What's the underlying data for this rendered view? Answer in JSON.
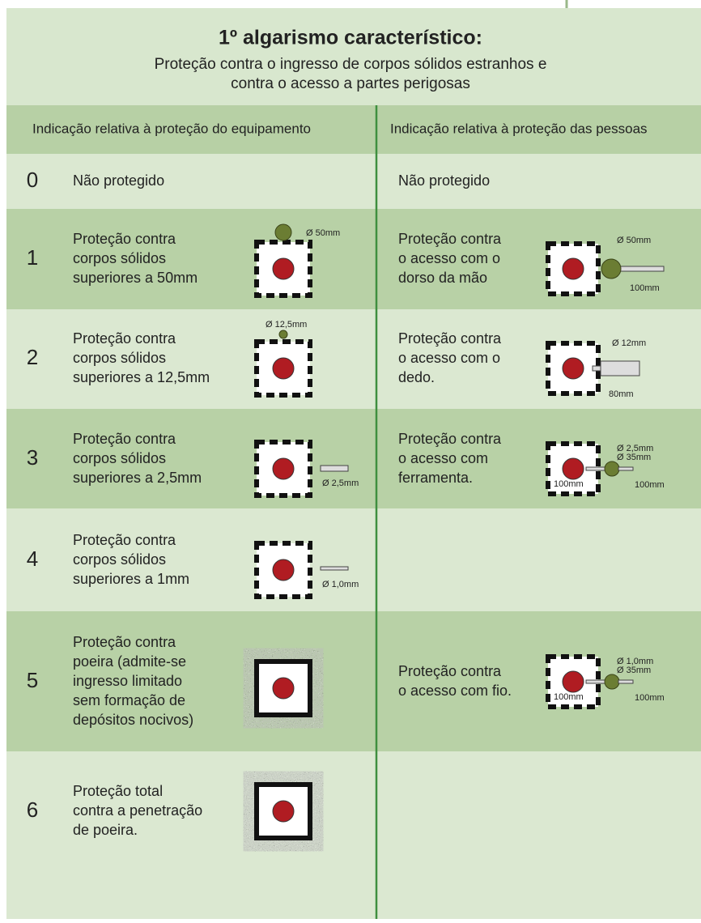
{
  "header": {
    "title": "1º algarismo característico:",
    "subtitle": [
      "Proteção contra o ingresso de corpos sólidos estranhos e",
      "contra o acesso a partes perigosas"
    ]
  },
  "columns": [
    "Indicação relativa à proteção do equipamento",
    "Indicação relativa à proteção das pessoas"
  ],
  "rows": [
    {
      "digit": "0",
      "equipment": [
        "Não protegido"
      ],
      "equipment_labels": [],
      "people": [
        "Não protegido"
      ],
      "people_labels": []
    },
    {
      "digit": "1",
      "equipment": [
        "Proteção contra",
        "corpos sólidos",
        "superiores a 50mm"
      ],
      "equipment_labels": [
        "Ø 50mm"
      ],
      "people": [
        "Proteção contra",
        "o acesso com o",
        "dorso da mão"
      ],
      "people_labels": [
        "Ø 50mm",
        "100mm"
      ]
    },
    {
      "digit": "2",
      "equipment": [
        "Proteção contra",
        "corpos sólidos",
        "superiores a 12,5mm"
      ],
      "equipment_labels": [
        "Ø 12,5mm"
      ],
      "people": [
        "Proteção contra",
        "o acesso com o",
        "dedo."
      ],
      "people_labels": [
        "Ø 12mm",
        "80mm"
      ]
    },
    {
      "digit": "3",
      "equipment": [
        "Proteção contra",
        "corpos sólidos",
        "superiores a 2,5mm"
      ],
      "equipment_labels": [
        "Ø 2,5mm"
      ],
      "people": [
        "Proteção contra",
        "o acesso com",
        "ferramenta."
      ],
      "people_labels": [
        "Ø 2,5mm",
        "Ø 35mm",
        "100mm",
        "100mm"
      ]
    },
    {
      "digit": "4",
      "equipment": [
        "Proteção contra",
        "corpos sólidos",
        "superiores a 1mm"
      ],
      "equipment_labels": [
        "Ø 1,0mm"
      ],
      "people": [],
      "people_labels": []
    },
    {
      "digit": "5",
      "equipment": [
        "Proteção contra",
        "poeira (admite-se",
        "ingresso limitado",
        "sem formação de",
        "depósitos nocivos)"
      ],
      "equipment_labels": [],
      "people": [
        "Proteção contra",
        "o acesso com fio."
      ],
      "people_labels": [
        "Ø 1,0mm",
        "Ø 35mm",
        "100mm",
        "100mm"
      ]
    },
    {
      "digit": "6",
      "equipment": [
        "Proteção total",
        "contra a penetração",
        "de poeira."
      ],
      "equipment_labels": [],
      "people": [],
      "people_labels": []
    }
  ]
}
